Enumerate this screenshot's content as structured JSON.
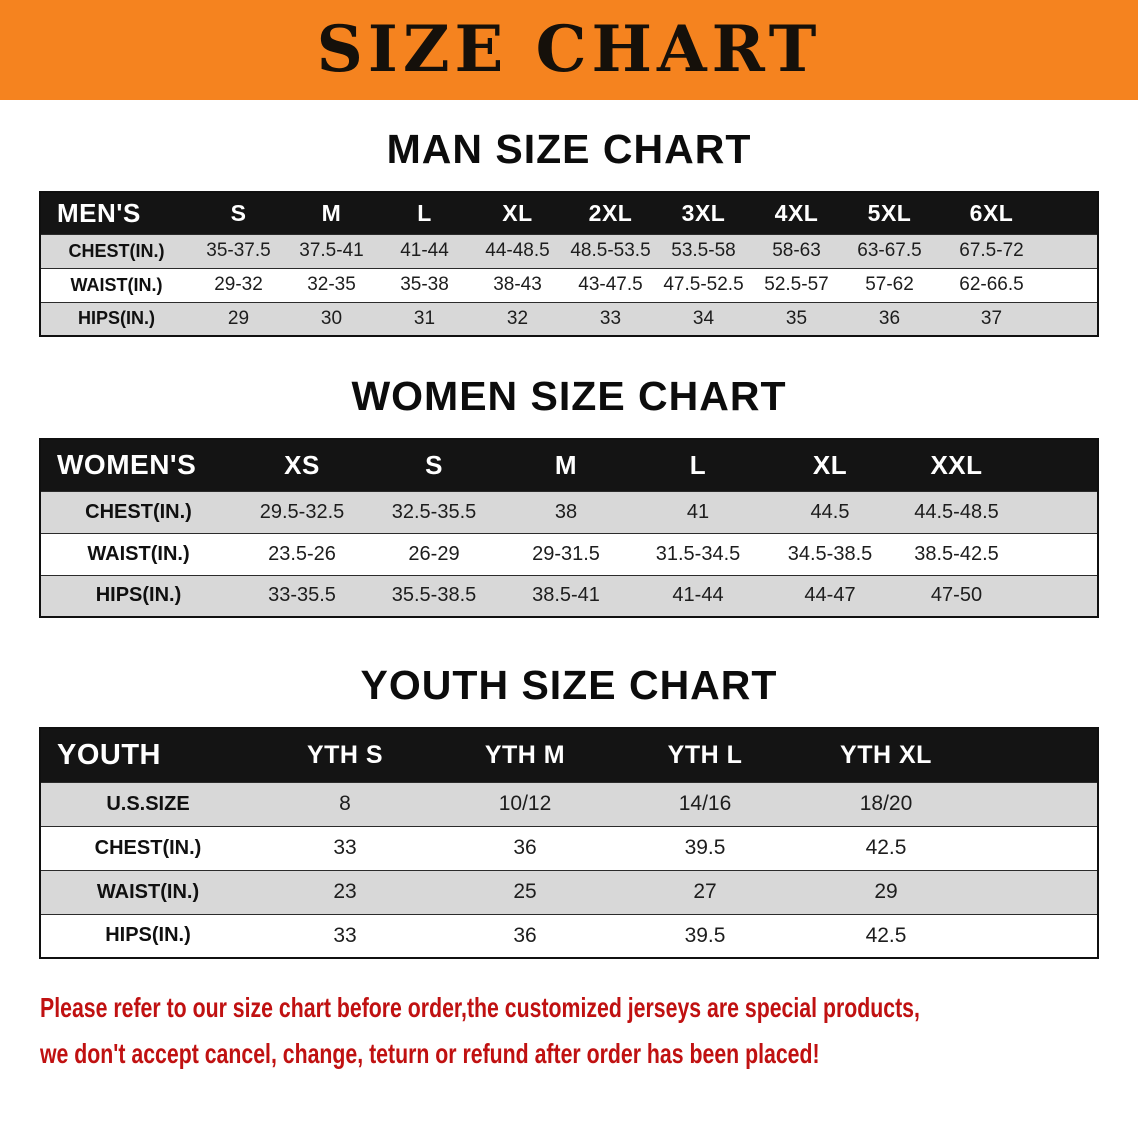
{
  "banner": {
    "title": "SIZE CHART"
  },
  "men": {
    "heading": "MAN SIZE CHART",
    "header": [
      "MEN'S",
      "S",
      "M",
      "L",
      "XL",
      "2XL",
      "3XL",
      "4XL",
      "5XL",
      "6XL"
    ],
    "rows": [
      [
        "CHEST(IN.)",
        "35-37.5",
        "37.5-41",
        "41-44",
        "44-48.5",
        "48.5-53.5",
        "53.5-58",
        "58-63",
        "63-67.5",
        "67.5-72"
      ],
      [
        "WAIST(IN.)",
        "29-32",
        "32-35",
        "35-38",
        "38-43",
        "43-47.5",
        "47.5-52.5",
        "52.5-57",
        "57-62",
        "62-66.5"
      ],
      [
        "HIPS(IN.)",
        "29",
        "30",
        "31",
        "32",
        "33",
        "34",
        "35",
        "36",
        "37"
      ]
    ]
  },
  "women": {
    "heading": "WOMEN SIZE CHART",
    "header": [
      "WOMEN'S",
      "XS",
      "S",
      "M",
      "L",
      "XL",
      "XXL"
    ],
    "rows": [
      [
        "CHEST(IN.)",
        "29.5-32.5",
        "32.5-35.5",
        "38",
        "41",
        "44.5",
        "44.5-48.5"
      ],
      [
        "WAIST(IN.)",
        "23.5-26",
        "26-29",
        "29-31.5",
        "31.5-34.5",
        "34.5-38.5",
        "38.5-42.5"
      ],
      [
        "HIPS(IN.)",
        "33-35.5",
        "35.5-38.5",
        "38.5-41",
        "41-44",
        "44-47",
        "47-50"
      ]
    ]
  },
  "youth": {
    "heading": "YOUTH SIZE CHART",
    "header": [
      "YOUTH",
      "YTH S",
      "YTH M",
      "YTH L",
      "YTH XL"
    ],
    "rows": [
      [
        "U.S.SIZE",
        "8",
        "10/12",
        "14/16",
        "18/20"
      ],
      [
        "CHEST(IN.)",
        "33",
        "36",
        "39.5",
        "42.5"
      ],
      [
        "WAIST(IN.)",
        "23",
        "25",
        "27",
        "29"
      ],
      [
        "HIPS(IN.)",
        "33",
        "36",
        "39.5",
        "42.5"
      ]
    ]
  },
  "disclaimer": {
    "line1": "Please refer to our size chart before order,the customized jerseys are special products,",
    "line2": "we don't accept cancel, change, teturn or refund after order has been placed!"
  },
  "colors": {
    "banner_bg": "#f5831f",
    "table_header_bg": "#141414",
    "row_alt_bg": "#d8d8d8",
    "disclaimer_text": "#c01111"
  }
}
